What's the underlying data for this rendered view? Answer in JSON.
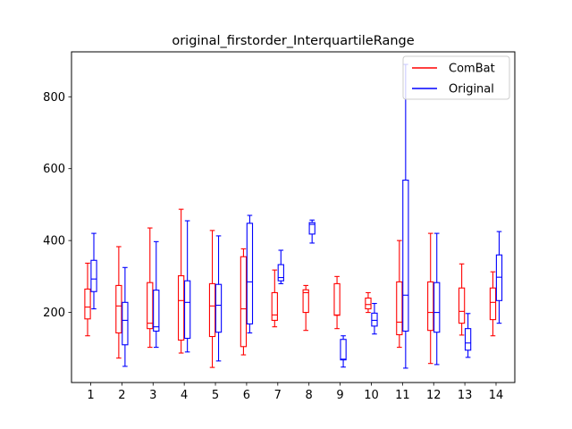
{
  "chart_data": {
    "type": "boxplot",
    "title": "original_firstorder_InterquartileRange",
    "xlabel": "",
    "ylabel": "",
    "categories": [
      "1",
      "2",
      "3",
      "4",
      "5",
      "6",
      "7",
      "8",
      "9",
      "10",
      "11",
      "12",
      "13",
      "14"
    ],
    "ylim": [
      5,
      925
    ],
    "yticks": [
      200,
      400,
      600,
      800
    ],
    "grid": false,
    "legend_position": "top-right",
    "series": [
      {
        "name": "ComBat",
        "color": "#ff0000",
        "boxes": [
          {
            "whislo": 135,
            "q1": 182,
            "med": 215,
            "q3": 265,
            "whishi": 337
          },
          {
            "whislo": 73,
            "q1": 143,
            "med": 218,
            "q3": 275,
            "whishi": 383
          },
          {
            "whislo": 103,
            "q1": 155,
            "med": 170,
            "q3": 283,
            "whishi": 435
          },
          {
            "whislo": 87,
            "q1": 123,
            "med": 233,
            "q3": 302,
            "whishi": 487
          },
          {
            "whislo": 47,
            "q1": 133,
            "med": 218,
            "q3": 280,
            "whishi": 428
          },
          {
            "whislo": 82,
            "q1": 105,
            "med": 210,
            "q3": 355,
            "whishi": 377
          },
          {
            "whislo": 160,
            "q1": 178,
            "med": 193,
            "q3": 255,
            "whishi": 318
          },
          {
            "whislo": 150,
            "q1": 200,
            "med": 255,
            "q3": 263,
            "whishi": 275
          },
          {
            "whislo": 155,
            "q1": 192,
            "med": 193,
            "q3": 280,
            "whishi": 300
          },
          {
            "whislo": 200,
            "q1": 210,
            "med": 222,
            "q3": 240,
            "whishi": 255
          },
          {
            "whislo": 103,
            "q1": 138,
            "med": 173,
            "q3": 285,
            "whishi": 400
          },
          {
            "whislo": 58,
            "q1": 150,
            "med": 200,
            "q3": 285,
            "whishi": 420
          },
          {
            "whislo": 137,
            "q1": 170,
            "med": 203,
            "q3": 268,
            "whishi": 335
          },
          {
            "whislo": 135,
            "q1": 180,
            "med": 228,
            "q3": 268,
            "whishi": 313
          }
        ]
      },
      {
        "name": "Original",
        "color": "#0000ff",
        "boxes": [
          {
            "whislo": 210,
            "q1": 258,
            "med": 293,
            "q3": 345,
            "whishi": 420
          },
          {
            "whislo": 50,
            "q1": 110,
            "med": 178,
            "q3": 228,
            "whishi": 325
          },
          {
            "whislo": 103,
            "q1": 148,
            "med": 160,
            "q3": 262,
            "whishi": 397
          },
          {
            "whislo": 90,
            "q1": 128,
            "med": 228,
            "q3": 288,
            "whishi": 455
          },
          {
            "whislo": 65,
            "q1": 145,
            "med": 220,
            "q3": 278,
            "whishi": 413
          },
          {
            "whislo": 143,
            "q1": 168,
            "med": 285,
            "q3": 448,
            "whishi": 470
          },
          {
            "whislo": 280,
            "q1": 288,
            "med": 297,
            "q3": 333,
            "whishi": 373
          },
          {
            "whislo": 393,
            "q1": 418,
            "med": 445,
            "q3": 450,
            "whishi": 457
          },
          {
            "whislo": 48,
            "q1": 68,
            "med": 70,
            "q3": 125,
            "whishi": 135
          },
          {
            "whislo": 140,
            "q1": 162,
            "med": 178,
            "q3": 198,
            "whishi": 225
          },
          {
            "whislo": 45,
            "q1": 148,
            "med": 248,
            "q3": 568,
            "whishi": 890
          },
          {
            "whislo": 55,
            "q1": 145,
            "med": 200,
            "q3": 283,
            "whishi": 420
          },
          {
            "whislo": 75,
            "q1": 95,
            "med": 115,
            "q3": 155,
            "whishi": 197
          },
          {
            "whislo": 170,
            "q1": 233,
            "med": 298,
            "q3": 360,
            "whishi": 425
          }
        ]
      }
    ]
  }
}
